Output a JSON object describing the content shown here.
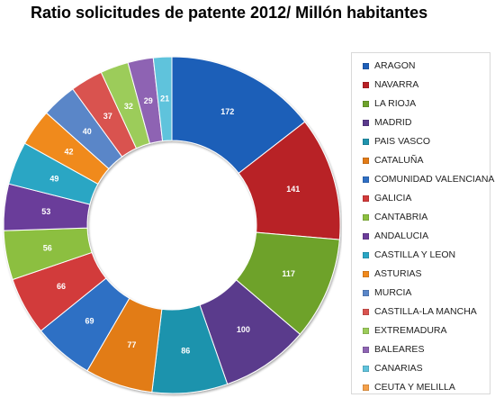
{
  "chart_data": {
    "type": "pie",
    "variant": "donut",
    "title": "Ratio solicitudes de patente 2012/ Millón  habitantes",
    "categories": [
      "ARAGON",
      "NAVARRA",
      "LA RIOJA",
      "MADRID",
      "PAIS VASCO",
      "CATALUÑA",
      "COMUNIDAD VALENCIANA",
      "GALICIA",
      "CANTABRIA",
      "ANDALUCIA",
      "CASTILLA Y LEON",
      "ASTURIAS",
      "MURCIA",
      "CASTILLA-LA MANCHA",
      "EXTREMADURA",
      "BALEARES",
      "CANARIAS",
      "CEUTA Y MELILLA"
    ],
    "values": [
      172,
      141,
      117,
      100,
      86,
      77,
      69,
      66,
      56,
      53,
      49,
      42,
      40,
      37,
      32,
      29,
      21,
      0
    ],
    "colors": [
      "#1f5fb8",
      "#b82126",
      "#6ea22c",
      "#5a3a8c",
      "#1f93ad",
      "#e27b17",
      "#2f6fc4",
      "#d23a3a",
      "#8cbf3f",
      "#6b3d9a",
      "#2aa6c4",
      "#f08a1e",
      "#5a86c8",
      "#d9534f",
      "#9ccc5a",
      "#8e64b3",
      "#5fc3dc",
      "#f5a04a"
    ],
    "data_labels": [
      "172",
      "141",
      "117",
      "100",
      "86",
      "77",
      "69",
      "66",
      "56",
      "53",
      "49",
      "42",
      "40",
      "37",
      "32",
      "29",
      "21",
      ""
    ],
    "legend_position": "right"
  }
}
